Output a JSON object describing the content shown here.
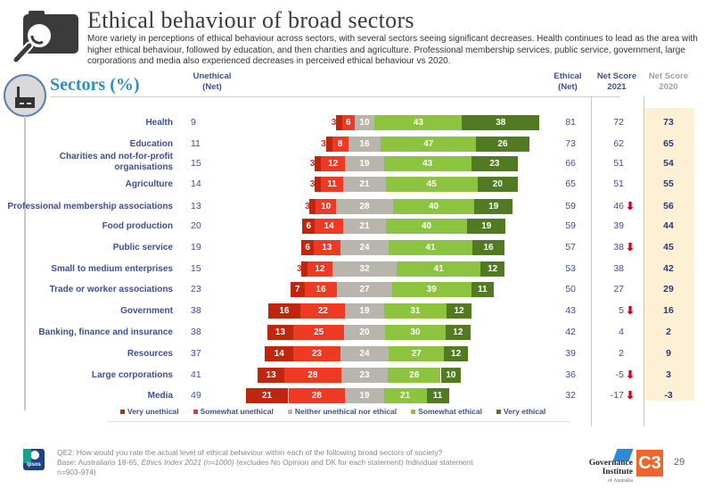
{
  "header": {
    "title": "Ethical behaviour of broad sectors",
    "subtitle": "More variety in perceptions of ethical behaviour across sectors, with several sectors seeing significant decreases. Health continues to lead as the area with higher ethical behaviour, followed by education, and then charities and agriculture. Professional membership services, public service, government, large corporations and media also experienced decreases in perceived ethical behaviour vs 2020.",
    "header_icon": "camera-magnifier-icon",
    "section_icon": "factory-icon",
    "section_title": "Sectors (%)"
  },
  "columns": {
    "unethical": "Unethical",
    "unethical_sub": "(Net)",
    "ethical": "Ethical",
    "ethical_sub": "(Net)",
    "ns2021": "Net Score",
    "ns2021_sub": "2021",
    "ns2020": "Net Score",
    "ns2020_sub": "2020"
  },
  "colors": {
    "very_unethical": "#c0260f",
    "somewhat_unethical": "#ee3a24",
    "neither": "#b8b5ad",
    "somewhat_ethical": "#8cc43f",
    "very_ethical": "#527a23",
    "label": "#3d4e9a",
    "decrease_arrow": "#d6001c",
    "ns2020_bg": "#fdf0d5"
  },
  "chart_data": {
    "type": "bar",
    "subtype": "diverging-stacked-horizontal",
    "title": "Ethical behaviour of broad sectors",
    "xlabel": "",
    "ylabel": "Sectors (%)",
    "legend_position": "bottom",
    "series": [
      {
        "name": "Very unethical",
        "values": [
          3,
          3,
          3,
          3,
          3,
          6,
          6,
          3,
          7,
          16,
          13,
          14,
          13,
          21
        ]
      },
      {
        "name": "Somewhat unethical",
        "values": [
          6,
          8,
          12,
          11,
          10,
          14,
          13,
          12,
          16,
          22,
          25,
          23,
          28,
          28
        ]
      },
      {
        "name": "Neither unethical nor ethical",
        "values": [
          10,
          16,
          19,
          21,
          28,
          21,
          24,
          32,
          27,
          19,
          20,
          24,
          23,
          19
        ]
      },
      {
        "name": "Somewhat ethical",
        "values": [
          43,
          47,
          43,
          45,
          40,
          40,
          41,
          41,
          39,
          31,
          30,
          27,
          26,
          21
        ]
      },
      {
        "name": "Very ethical",
        "values": [
          38,
          26,
          23,
          20,
          19,
          19,
          16,
          12,
          11,
          12,
          12,
          12,
          10,
          11
        ]
      }
    ],
    "categories": [
      "Health",
      "Education",
      "Charities and not-for-profit organisations",
      "Agriculture",
      "Professional membership associations",
      "Food production",
      "Public service",
      "Small to medium enterprises",
      "Trade or worker associations",
      "Government",
      "Banking, finance and insurance",
      "Resources",
      "Large corporations",
      "Media"
    ],
    "unethical_net": [
      9,
      11,
      15,
      14,
      13,
      20,
      19,
      15,
      23,
      38,
      38,
      37,
      41,
      49
    ],
    "ethical_net": [
      81,
      73,
      66,
      65,
      59,
      59,
      57,
      53,
      50,
      43,
      42,
      39,
      36,
      32
    ],
    "net_score_2021": [
      72,
      62,
      51,
      51,
      46,
      39,
      38,
      38,
      27,
      5,
      4,
      2,
      -5,
      -17
    ],
    "net_score_2020": [
      73,
      65,
      54,
      55,
      56,
      44,
      45,
      42,
      29,
      16,
      2,
      9,
      3,
      -3
    ],
    "significant_decrease": [
      false,
      false,
      false,
      false,
      true,
      false,
      true,
      false,
      false,
      true,
      false,
      false,
      true,
      true
    ]
  },
  "rows_display": [
    {
      "label": "Health"
    },
    {
      "label": "Education"
    },
    {
      "label": "Charities and not-for-profit\norganisations"
    },
    {
      "label": "Agriculture"
    },
    {
      "label": "Professional membership associations"
    },
    {
      "label": "Food production"
    },
    {
      "label": "Public service"
    },
    {
      "label": "Small to medium enterprises"
    },
    {
      "label": "Trade or worker associations"
    },
    {
      "label": "Government"
    },
    {
      "label": "Banking, finance and insurance"
    },
    {
      "label": "Resources"
    },
    {
      "label": "Large corporations"
    },
    {
      "label": "Media"
    }
  ],
  "legend": [
    "Very unethical",
    "Somewhat unethical",
    "Neither unethical nor ethical",
    "Somewhat ethical",
    "Very ethical"
  ],
  "footer": {
    "question": "QE2: How would you rate the actual level of ethical behaviour within each of the following broad sectors of society?",
    "base_prefix": "Base: Australians 18-65, ",
    "base_italic": "Ethics Index 2021 (n=1000)",
    "base_suffix": " (excludes No Opinion and DK for each statement) Individual statement n=903-974)",
    "ipsos_logo": "Ipsos",
    "gov_logo": "Governance Institute",
    "gov_logo_sub": "of Australia",
    "c3_logo": "C3",
    "page_number": "29"
  }
}
